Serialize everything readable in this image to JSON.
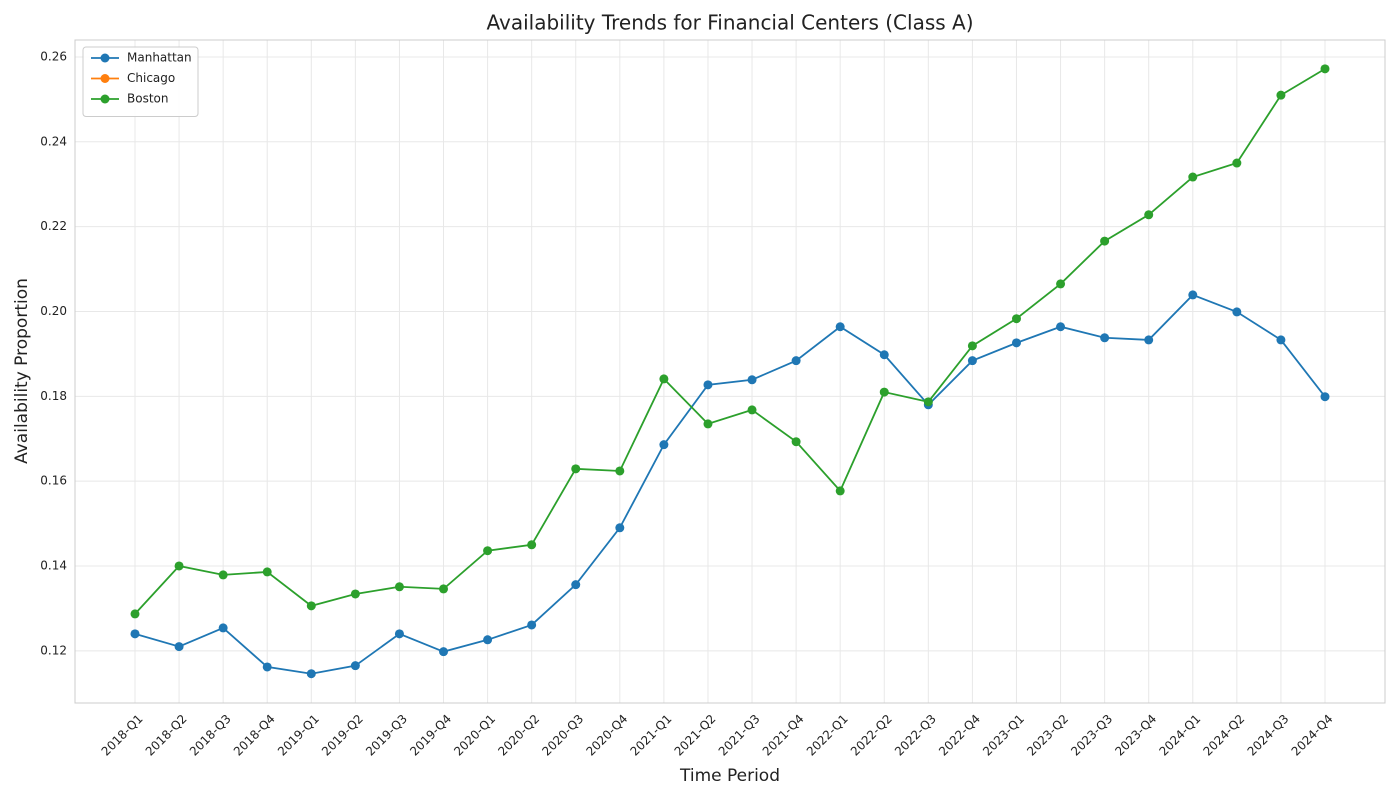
{
  "chart_data": {
    "type": "line",
    "title": "Availability Trends for Financial Centers (Class A)",
    "x_label": "Time Period",
    "y_label": "Availability Proportion",
    "categories": [
      "2018-Q1",
      "2018-Q2",
      "2018-Q3",
      "2018-Q4",
      "2019-Q1",
      "2019-Q2",
      "2019-Q3",
      "2019-Q4",
      "2020-Q1",
      "2020-Q2",
      "2020-Q3",
      "2020-Q4",
      "2021-Q1",
      "2021-Q2",
      "2021-Q3",
      "2021-Q4",
      "2022-Q1",
      "2022-Q2",
      "2022-Q3",
      "2022-Q4",
      "2023-Q1",
      "2023-Q2",
      "2023-Q3",
      "2023-Q4",
      "2024-Q1",
      "2024-Q2",
      "2024-Q3",
      "2024-Q4"
    ],
    "series": [
      {
        "name": "Manhattan",
        "color": "#1f77b4",
        "values": [
          0.124,
          0.121,
          0.1254,
          0.1162,
          0.1146,
          0.1165,
          0.124,
          0.1198,
          0.1226,
          0.1261,
          0.1356,
          0.149,
          0.1686,
          0.1827,
          0.1839,
          0.1884,
          0.1964,
          0.1898,
          0.178,
          0.1884,
          0.1926,
          0.1964,
          0.1938,
          0.1933,
          0.2039,
          0.1999,
          0.1933,
          0.1799
        ]
      },
      {
        "name": "Chicago",
        "color": "#ff7f0e",
        "values": [
          null,
          null,
          null,
          null,
          null,
          null,
          null,
          null,
          null,
          null,
          null,
          null,
          null,
          null,
          null,
          null,
          null,
          null,
          null,
          null,
          null,
          null,
          null,
          null,
          null,
          null,
          null,
          null
        ]
      },
      {
        "name": "Boston",
        "color": "#2ca02c",
        "values": [
          0.1287,
          0.14,
          0.1379,
          0.1386,
          0.1306,
          0.1334,
          0.1351,
          0.1346,
          0.1436,
          0.145,
          0.1629,
          0.1624,
          0.1841,
          0.1735,
          0.1768,
          0.1693,
          0.1577,
          0.181,
          0.1787,
          0.1919,
          0.1983,
          0.2065,
          0.2166,
          0.2228,
          0.2317,
          0.235,
          0.251,
          0.2572
        ]
      }
    ],
    "ylim": [
      0.1077,
      0.264
    ],
    "yticks": [
      0.12,
      0.14,
      0.16,
      0.18,
      {
        "value": 0.2,
        "label": "0.20"
      },
      0.22,
      0.24,
      0.26
    ],
    "grid": true,
    "legend": "upper left"
  }
}
